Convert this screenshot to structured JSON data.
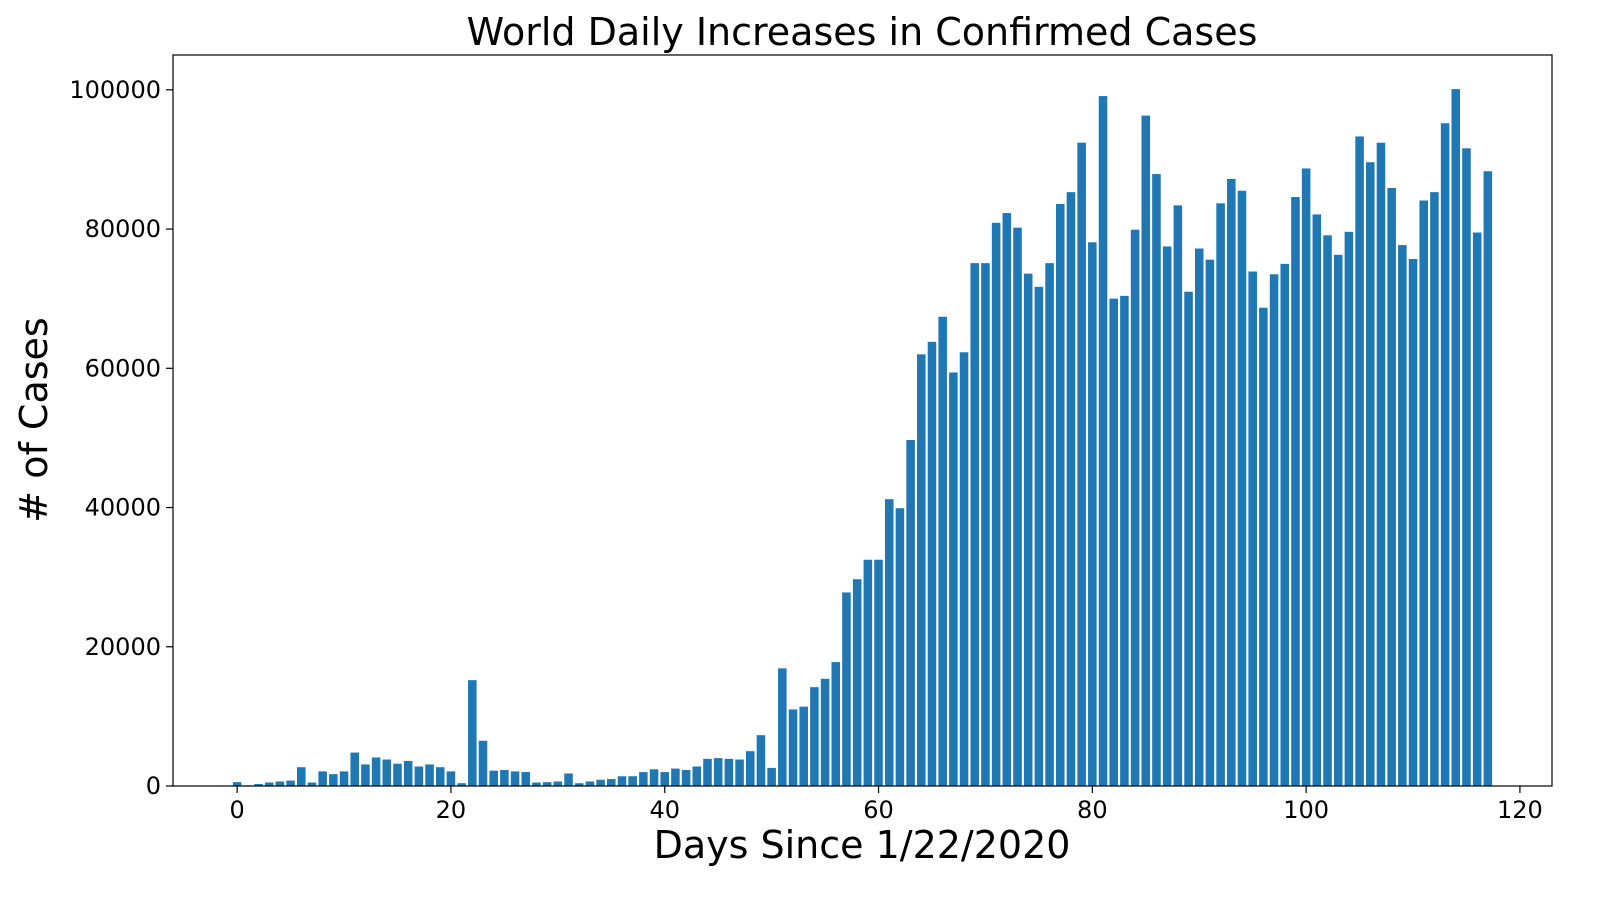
{
  "chart_data": {
    "type": "bar",
    "title": "World Daily Increases in Confirmed Cases",
    "xlabel": "Days Since 1/22/2020",
    "ylabel": "# of Cases",
    "xlim": [
      -6,
      123
    ],
    "ylim": [
      0,
      105000
    ],
    "xticks": [
      0,
      20,
      40,
      60,
      80,
      100,
      120
    ],
    "yticks": [
      0,
      20000,
      40000,
      60000,
      80000,
      100000
    ],
    "grid": false,
    "bar_color": "#1f77b4",
    "x": [
      0,
      1,
      2,
      3,
      4,
      5,
      6,
      7,
      8,
      9,
      10,
      11,
      12,
      13,
      14,
      15,
      16,
      17,
      18,
      19,
      20,
      21,
      22,
      23,
      24,
      25,
      26,
      27,
      28,
      29,
      30,
      31,
      32,
      33,
      34,
      35,
      36,
      37,
      38,
      39,
      40,
      41,
      42,
      43,
      44,
      45,
      46,
      47,
      48,
      49,
      50,
      51,
      52,
      53,
      54,
      55,
      56,
      57,
      58,
      59,
      60,
      61,
      62,
      63,
      64,
      65,
      66,
      67,
      68,
      69,
      70,
      71,
      72,
      73,
      74,
      75,
      76,
      77,
      78,
      79,
      80,
      81,
      82,
      83,
      84,
      85,
      86,
      87,
      88,
      89,
      90,
      91,
      92,
      93,
      94,
      95,
      96,
      97,
      98,
      99,
      100,
      101,
      102,
      103,
      104,
      105,
      106,
      107,
      108,
      109,
      110,
      111,
      112,
      113,
      114,
      115,
      116,
      117
    ],
    "values": [
      555,
      98,
      290,
      500,
      650,
      780,
      2700,
      500,
      2100,
      1700,
      2100,
      4800,
      3100,
      4100,
      3800,
      3200,
      3600,
      2800,
      3100,
      2700,
      2100,
      400,
      15200,
      6500,
      2200,
      2300,
      2100,
      2000,
      500,
      550,
      650,
      1800,
      400,
      650,
      900,
      1000,
      1400,
      1400,
      2000,
      2400,
      2000,
      2500,
      2300,
      2800,
      3900,
      4000,
      3900,
      3800,
      5000,
      7300,
      2600,
      16900,
      11000,
      11400,
      14200,
      15400,
      17800,
      27800,
      29700,
      32500,
      32500,
      41200,
      39900,
      49700,
      62000,
      63800,
      67400,
      59400,
      62300,
      75100,
      75100,
      80900,
      82300,
      80200,
      73600,
      71700,
      75100,
      83600,
      85300,
      92400,
      78100,
      99100,
      70000,
      70400,
      79900,
      96300,
      87900,
      77500,
      83400,
      71000,
      77200,
      75600,
      83700,
      87200,
      85500,
      73900,
      68700,
      73500,
      75000,
      84600,
      88700,
      82100,
      79100,
      76300,
      79600,
      93300,
      89600,
      92400,
      85900,
      77700,
      75700,
      84100,
      85300,
      95200,
      100100,
      91600,
      79500,
      88300
    ]
  }
}
